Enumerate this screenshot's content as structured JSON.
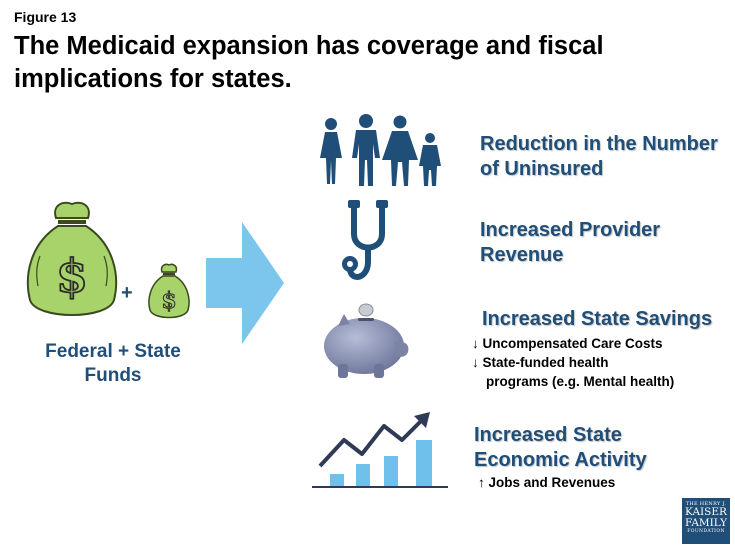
{
  "figure_label": "Figure 13",
  "title": "The Medicaid expansion has coverage and fiscal implications for states.",
  "left": {
    "plus_sign": "+",
    "funds_label": "Federal + State Funds",
    "bag_symbol": "$"
  },
  "outcomes": [
    {
      "icon": "family-icon",
      "heading_line1": "Reduction in the Number",
      "heading_line2": "of Uninsured"
    },
    {
      "icon": "stethoscope-icon",
      "heading_line1": "Increased Provider",
      "heading_line2": "Revenue"
    },
    {
      "icon": "piggy-bank-icon",
      "heading_line1": "Increased State Savings",
      "bullet1": "↓ Uncompensated Care Costs",
      "bullet2_line1": "↓ State-funded health",
      "bullet2_line2": "programs (e.g. Mental health)"
    },
    {
      "icon": "growth-chart-icon",
      "heading_line1": "Increased State",
      "heading_line2": "Economic Activity",
      "bullet1": "↑ Jobs and Revenues"
    }
  ],
  "logo": {
    "line1": "THE HENRY J.",
    "line2": "KAISER",
    "line3": "FAMILY",
    "line4": "FOUNDATION"
  },
  "colors": {
    "heading_blue": "#1f4e79",
    "arrow_blue": "#7cc6ee",
    "bag_green": "#a8d26a",
    "bar_blue": "#6fc1ec"
  }
}
